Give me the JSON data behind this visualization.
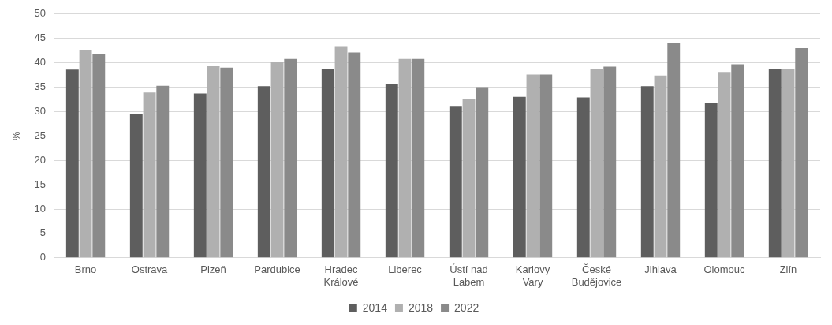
{
  "chart_data": {
    "type": "bar",
    "ylabel": "%",
    "categories": [
      "Brno",
      "Ostrava",
      "Plzeň",
      "Pardubice",
      "Hradec Králové",
      "Liberec",
      "Ústí nad Labem",
      "Karlovy Vary",
      "České Budějovice",
      "Jihlava",
      "Olomouc",
      "Zlín"
    ],
    "series": [
      {
        "name": "2014",
        "color": "#5e5e5e",
        "values": [
          38.6,
          29.5,
          33.7,
          35.2,
          38.8,
          35.6,
          31.0,
          33.0,
          32.9,
          35.2,
          31.7,
          38.7
        ]
      },
      {
        "name": "2018",
        "color": "#b0b0b0",
        "values": [
          42.6,
          33.9,
          39.3,
          40.2,
          43.4,
          40.8,
          32.6,
          37.6,
          38.7,
          37.4,
          38.1,
          38.8
        ]
      },
      {
        "name": "2022",
        "color": "#8a8a8a",
        "values": [
          41.8,
          35.3,
          39.0,
          40.8,
          42.1,
          40.8,
          35.0,
          37.6,
          39.2,
          44.1,
          39.7,
          43.0
        ]
      }
    ],
    "ylim": [
      0,
      50
    ],
    "yticks": [
      0,
      5,
      10,
      15,
      20,
      25,
      30,
      35,
      40,
      45,
      50
    ],
    "grid": "y",
    "legend": "bottom"
  }
}
